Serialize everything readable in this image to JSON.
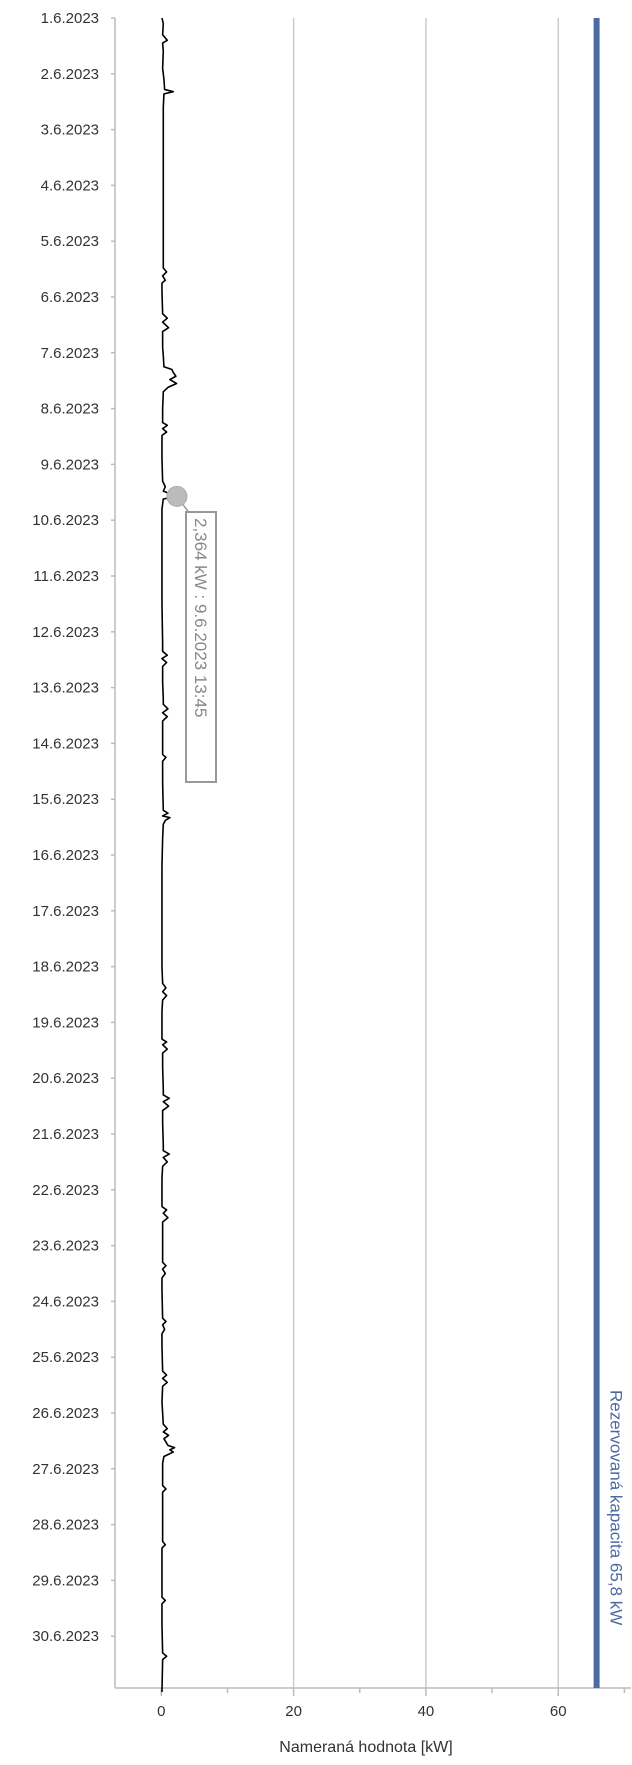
{
  "chart_data": {
    "type": "line",
    "orientation": "vertical-time-axis",
    "title": "",
    "xlabel": "Nameraná hodnota [kW]",
    "ylabel": "",
    "xlim": [
      -7,
      71
    ],
    "x_ticks": [
      0,
      20,
      40,
      60
    ],
    "x_tick_labels": [
      "0",
      "20",
      "40",
      "60"
    ],
    "y_tick_labels": [
      "1.6.2023",
      "2.6.2023",
      "3.6.2023",
      "4.6.2023",
      "5.6.2023",
      "6.6.2023",
      "7.6.2023",
      "8.6.2023",
      "9.6.2023",
      "10.6.2023",
      "11.6.2023",
      "12.6.2023",
      "13.6.2023",
      "14.6.2023",
      "15.6.2023",
      "16.6.2023",
      "17.6.2023",
      "18.6.2023",
      "19.6.2023",
      "20.6.2023",
      "21.6.2023",
      "22.6.2023",
      "23.6.2023",
      "24.6.2023",
      "25.6.2023",
      "26.6.2023",
      "27.6.2023",
      "28.6.2023",
      "29.6.2023",
      "30.6.2023"
    ],
    "grid": true,
    "colors": {
      "series": "#000000",
      "reserved": "#4a6aa3",
      "grid": "#cccccc",
      "axis": "#bbbbbb",
      "annotation": "#999999",
      "text": "#333333"
    },
    "series": [
      {
        "values": [
          {
            "day": 1.0,
            "kw": 0.1
          },
          {
            "day": 1.1,
            "kw": 0.3
          },
          {
            "day": 1.3,
            "kw": 0.2
          },
          {
            "day": 1.4,
            "kw": 0.9
          },
          {
            "day": 1.45,
            "kw": 0.2
          },
          {
            "day": 1.6,
            "kw": 0.3
          },
          {
            "day": 1.9,
            "kw": 0.2
          },
          {
            "day": 2.1,
            "kw": 0.4
          },
          {
            "day": 2.28,
            "kw": 0.5
          },
          {
            "day": 2.32,
            "kw": 1.8
          },
          {
            "day": 2.36,
            "kw": 0.4
          },
          {
            "day": 2.6,
            "kw": 0.3
          },
          {
            "day": 3.0,
            "kw": 0.3
          },
          {
            "day": 4.0,
            "kw": 0.3
          },
          {
            "day": 5.0,
            "kw": 0.3
          },
          {
            "day": 5.48,
            "kw": 0.3
          },
          {
            "day": 5.55,
            "kw": 0.8
          },
          {
            "day": 5.62,
            "kw": 0.2
          },
          {
            "day": 5.7,
            "kw": 0.6
          },
          {
            "day": 5.75,
            "kw": 0.1
          },
          {
            "day": 5.9,
            "kw": 0.1
          },
          {
            "day": 6.3,
            "kw": 0.2
          },
          {
            "day": 6.38,
            "kw": 0.9
          },
          {
            "day": 6.45,
            "kw": 0.2
          },
          {
            "day": 6.55,
            "kw": 1.1
          },
          {
            "day": 6.62,
            "kw": 0.2
          },
          {
            "day": 6.9,
            "kw": 0.2
          },
          {
            "day": 7.05,
            "kw": 0.3
          },
          {
            "day": 7.25,
            "kw": 0.4
          },
          {
            "day": 7.3,
            "kw": 1.6
          },
          {
            "day": 7.35,
            "kw": 1.8
          },
          {
            "day": 7.42,
            "kw": 2.2
          },
          {
            "day": 7.48,
            "kw": 1.3
          },
          {
            "day": 7.55,
            "kw": 2.3
          },
          {
            "day": 7.62,
            "kw": 1.0
          },
          {
            "day": 7.7,
            "kw": 0.3
          },
          {
            "day": 8.0,
            "kw": 0.2
          },
          {
            "day": 8.25,
            "kw": 0.2
          },
          {
            "day": 8.3,
            "kw": 0.9
          },
          {
            "day": 8.36,
            "kw": 0.2
          },
          {
            "day": 8.42,
            "kw": 0.8
          },
          {
            "day": 8.48,
            "kw": 0.1
          },
          {
            "day": 8.9,
            "kw": 0.1
          },
          {
            "day": 9.3,
            "kw": 0.2
          },
          {
            "day": 9.4,
            "kw": 0.6
          },
          {
            "day": 9.48,
            "kw": 0.3
          },
          {
            "day": 9.573,
            "kw": 2.364
          },
          {
            "day": 9.62,
            "kw": 0.3
          },
          {
            "day": 9.8,
            "kw": 0.1
          },
          {
            "day": 10.5,
            "kw": 0.1
          },
          {
            "day": 11.5,
            "kw": 0.1
          },
          {
            "day": 12.2,
            "kw": 0.2
          },
          {
            "day": 12.35,
            "kw": 0.2
          },
          {
            "day": 12.42,
            "kw": 0.9
          },
          {
            "day": 12.48,
            "kw": 0.1
          },
          {
            "day": 12.55,
            "kw": 0.8
          },
          {
            "day": 12.62,
            "kw": 0.2
          },
          {
            "day": 12.9,
            "kw": 0.2
          },
          {
            "day": 13.2,
            "kw": 0.3
          },
          {
            "day": 13.3,
            "kw": 0.3
          },
          {
            "day": 13.38,
            "kw": 1.0
          },
          {
            "day": 13.45,
            "kw": 0.2
          },
          {
            "day": 13.52,
            "kw": 0.9
          },
          {
            "day": 13.6,
            "kw": 0.2
          },
          {
            "day": 14.2,
            "kw": 0.2
          },
          {
            "day": 14.25,
            "kw": 0.7
          },
          {
            "day": 14.32,
            "kw": 0.2
          },
          {
            "day": 14.7,
            "kw": 0.2
          },
          {
            "day": 15.2,
            "kw": 0.3
          },
          {
            "day": 15.25,
            "kw": 1.0
          },
          {
            "day": 15.3,
            "kw": 0.2
          },
          {
            "day": 15.33,
            "kw": 1.3
          },
          {
            "day": 15.38,
            "kw": 0.6
          },
          {
            "day": 15.45,
            "kw": 0.3
          },
          {
            "day": 15.7,
            "kw": 0.2
          },
          {
            "day": 16.2,
            "kw": 0.1
          },
          {
            "day": 17.0,
            "kw": 0.1
          },
          {
            "day": 18.0,
            "kw": 0.1
          },
          {
            "day": 18.3,
            "kw": 0.2
          },
          {
            "day": 18.38,
            "kw": 0.7
          },
          {
            "day": 18.45,
            "kw": 0.2
          },
          {
            "day": 18.52,
            "kw": 0.8
          },
          {
            "day": 18.6,
            "kw": 0.2
          },
          {
            "day": 18.8,
            "kw": 0.1
          },
          {
            "day": 19.3,
            "kw": 0.1
          },
          {
            "day": 19.35,
            "kw": 0.8
          },
          {
            "day": 19.4,
            "kw": 0.2
          },
          {
            "day": 19.48,
            "kw": 0.9
          },
          {
            "day": 19.55,
            "kw": 0.2
          },
          {
            "day": 19.8,
            "kw": 0.2
          },
          {
            "day": 20.2,
            "kw": 0.3
          },
          {
            "day": 20.3,
            "kw": 0.3
          },
          {
            "day": 20.36,
            "kw": 1.2
          },
          {
            "day": 20.42,
            "kw": 0.3
          },
          {
            "day": 20.5,
            "kw": 1.1
          },
          {
            "day": 20.58,
            "kw": 0.2
          },
          {
            "day": 20.8,
            "kw": 0.2
          },
          {
            "day": 21.2,
            "kw": 0.3
          },
          {
            "day": 21.3,
            "kw": 0.3
          },
          {
            "day": 21.36,
            "kw": 1.2
          },
          {
            "day": 21.42,
            "kw": 0.3
          },
          {
            "day": 21.5,
            "kw": 0.9
          },
          {
            "day": 21.58,
            "kw": 0.2
          },
          {
            "day": 21.8,
            "kw": 0.1
          },
          {
            "day": 22.3,
            "kw": 0.1
          },
          {
            "day": 22.36,
            "kw": 0.8
          },
          {
            "day": 22.42,
            "kw": 0.3
          },
          {
            "day": 22.5,
            "kw": 1.0
          },
          {
            "day": 22.58,
            "kw": 0.2
          },
          {
            "day": 22.8,
            "kw": 0.2
          },
          {
            "day": 23.3,
            "kw": 0.2
          },
          {
            "day": 23.36,
            "kw": 0.7
          },
          {
            "day": 23.42,
            "kw": 0.2
          },
          {
            "day": 23.5,
            "kw": 0.6
          },
          {
            "day": 23.58,
            "kw": 0.1
          },
          {
            "day": 23.8,
            "kw": 0.1
          },
          {
            "day": 24.3,
            "kw": 0.2
          },
          {
            "day": 24.36,
            "kw": 0.7
          },
          {
            "day": 24.42,
            "kw": 0.2
          },
          {
            "day": 24.5,
            "kw": 0.5
          },
          {
            "day": 24.58,
            "kw": 0.1
          },
          {
            "day": 24.8,
            "kw": 0.1
          },
          {
            "day": 25.25,
            "kw": 0.2
          },
          {
            "day": 25.32,
            "kw": 0.8
          },
          {
            "day": 25.38,
            "kw": 0.2
          },
          {
            "day": 25.45,
            "kw": 0.9
          },
          {
            "day": 25.52,
            "kw": 0.2
          },
          {
            "day": 25.8,
            "kw": 0.1
          },
          {
            "day": 26.2,
            "kw": 0.3
          },
          {
            "day": 26.28,
            "kw": 0.9
          },
          {
            "day": 26.34,
            "kw": 0.3
          },
          {
            "day": 26.4,
            "kw": 1.1
          },
          {
            "day": 26.46,
            "kw": 0.4
          },
          {
            "day": 26.58,
            "kw": 1.0
          },
          {
            "day": 26.62,
            "kw": 2.0
          },
          {
            "day": 26.66,
            "kw": 1.3
          },
          {
            "day": 26.7,
            "kw": 1.8
          },
          {
            "day": 26.78,
            "kw": 0.4
          },
          {
            "day": 26.9,
            "kw": 0.2
          },
          {
            "day": 27.3,
            "kw": 0.2
          },
          {
            "day": 27.36,
            "kw": 0.7
          },
          {
            "day": 27.42,
            "kw": 0.2
          },
          {
            "day": 27.8,
            "kw": 0.2
          },
          {
            "day": 28.3,
            "kw": 0.2
          },
          {
            "day": 28.36,
            "kw": 0.6
          },
          {
            "day": 28.42,
            "kw": 0.1
          },
          {
            "day": 28.8,
            "kw": 0.1
          },
          {
            "day": 29.3,
            "kw": 0.1
          },
          {
            "day": 29.36,
            "kw": 0.6
          },
          {
            "day": 29.42,
            "kw": 0.1
          },
          {
            "day": 29.8,
            "kw": 0.1
          },
          {
            "day": 30.3,
            "kw": 0.2
          },
          {
            "day": 30.36,
            "kw": 0.8
          },
          {
            "day": 30.42,
            "kw": 0.2
          },
          {
            "day": 31.0,
            "kw": 0.1
          }
        ]
      }
    ],
    "reserved_capacity": {
      "value": 65.8,
      "label": "Rezervovaná kapacita 65,8 kW"
    },
    "annotation": {
      "day": 9.573,
      "kw": 2.364,
      "label": "2,364 kW : 9.6.2023 13:45"
    }
  }
}
